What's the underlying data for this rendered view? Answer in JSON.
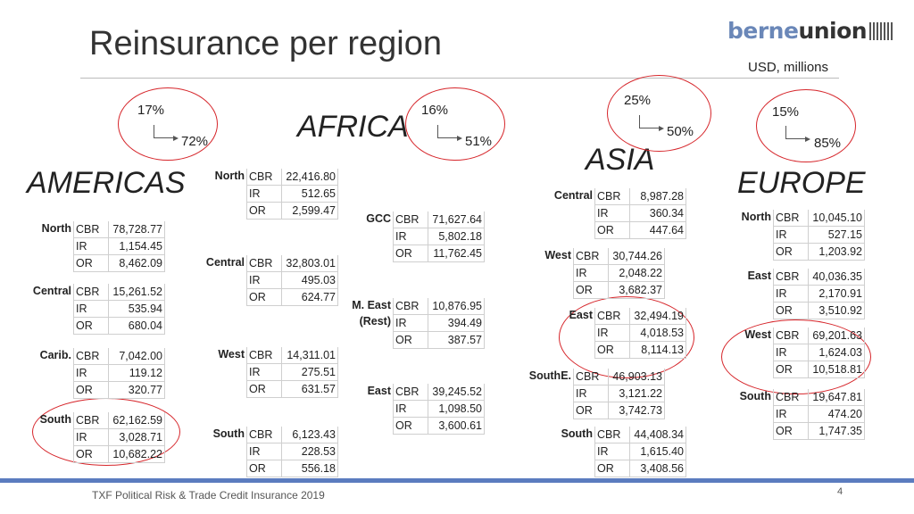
{
  "title": "Reinsurance per region",
  "logo": {
    "part1": "berne",
    "part2": "union"
  },
  "units": "USD, millions",
  "regions": [
    {
      "name": "AMERICAS",
      "pct_a": "17%",
      "pct_b": "72%"
    },
    {
      "name": "AFRICA",
      "pct_a": "16%",
      "pct_b": "51%"
    },
    {
      "name": "ASIA",
      "pct_a": "25%",
      "pct_b": "50%"
    },
    {
      "name": "EUROPE",
      "pct_a": "15%",
      "pct_b": "85%"
    }
  ],
  "tables": [
    {
      "label": "North",
      "cbr": "78,728.77",
      "ir": "1,154.45",
      "or": "8,462.09"
    },
    {
      "label": "Central",
      "cbr": "15,261.52",
      "ir": "535.94",
      "or": "680.04"
    },
    {
      "label": "Carib.",
      "cbr": "7,042.00",
      "ir": "119.12",
      "or": "320.77"
    },
    {
      "label": "South",
      "cbr": "62,162.59",
      "ir": "3,028.71",
      "or": "10,682.22"
    },
    {
      "label": "North",
      "cbr": "22,416.80",
      "ir": "512.65",
      "or": "2,599.47"
    },
    {
      "label": "Central",
      "cbr": "32,803.01",
      "ir": "495.03",
      "or": "624.77"
    },
    {
      "label": "West",
      "cbr": "14,311.01",
      "ir": "275.51",
      "or": "631.57"
    },
    {
      "label": "South",
      "cbr": "6,123.43",
      "ir": "228.53",
      "or": "556.18"
    },
    {
      "label": "GCC",
      "cbr": "71,627.64",
      "ir": "5,802.18",
      "or": "11,762.45"
    },
    {
      "label": "M. East",
      "label2": "(Rest)",
      "cbr": "10,876.95",
      "ir": "394.49",
      "or": "387.57"
    },
    {
      "label": "East",
      "cbr": "39,245.52",
      "ir": "1,098.50",
      "or": "3,600.61"
    },
    {
      "label": "Central",
      "cbr": "8,987.28",
      "ir": "360.34",
      "or": "447.64"
    },
    {
      "label": "West",
      "cbr": "30,744.26",
      "ir": "2,048.22",
      "or": "3,682.37"
    },
    {
      "label": "East",
      "cbr": "32,494.19",
      "ir": "4,018.53",
      "or": "8,114.13"
    },
    {
      "label": "SouthE.",
      "cbr": "46,903.13",
      "ir": "3,121.22",
      "or": "3,742.73"
    },
    {
      "label": "South",
      "cbr": "44,408.34",
      "ir": "1,615.40",
      "or": "3,408.56"
    },
    {
      "label": "North",
      "cbr": "10,045.10",
      "ir": "527.15",
      "or": "1,203.92"
    },
    {
      "label": "East",
      "cbr": "40,036.35",
      "ir": "2,170.91",
      "or": "3,510.92"
    },
    {
      "label": "West",
      "cbr": "69,201.63",
      "ir": "1,624.03",
      "or": "10,518.81"
    },
    {
      "label": "South",
      "cbr": "19,647.81",
      "ir": "474.20",
      "or": "1,747.35"
    }
  ],
  "row_keys": {
    "cbr": "CBR",
    "ir": "IR",
    "or": "OR"
  },
  "footer": "TXF Political Risk & Trade Credit Insurance 2019",
  "page_number": "4",
  "colors": {
    "highlight": "#d6262b",
    "accent": "#5b7cbf"
  }
}
